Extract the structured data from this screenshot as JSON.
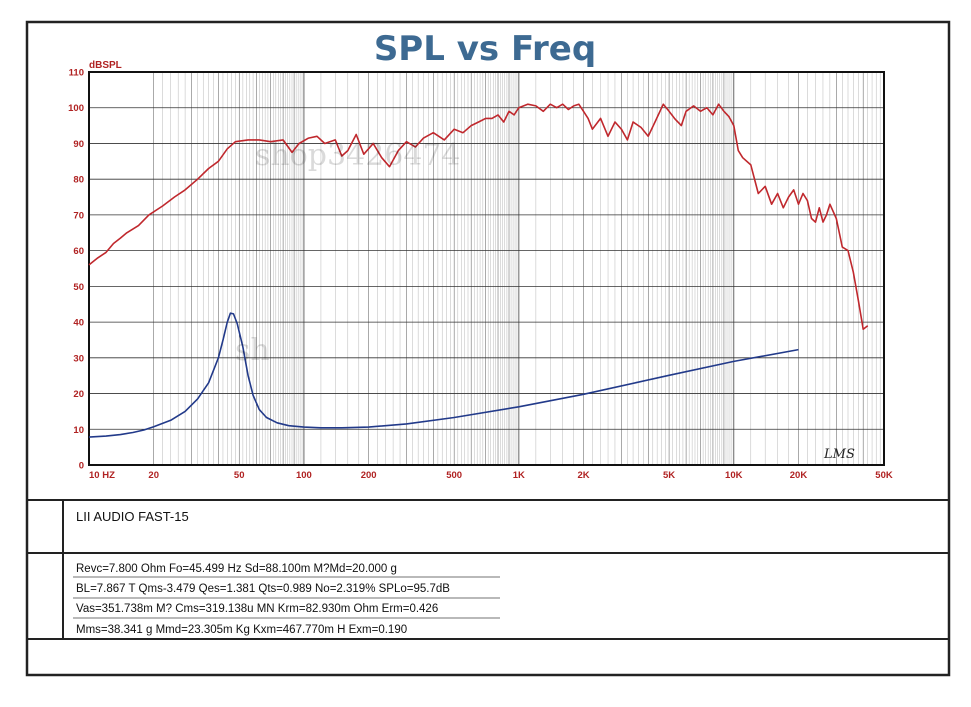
{
  "chart_data": {
    "type": "line",
    "title": "SPL vs Freq",
    "ylabel": "dBSPL",
    "xscale": "log",
    "xlim": [
      10,
      50000
    ],
    "ylim": [
      0,
      110
    ],
    "y_ticks": [
      "0",
      "10",
      "20",
      "30",
      "40",
      "50",
      "60",
      "70",
      "80",
      "90",
      "100",
      "110"
    ],
    "x_ticks": [
      {
        "value": 10,
        "label": "10  HZ"
      },
      {
        "value": 20,
        "label": "20"
      },
      {
        "value": 50,
        "label": "50"
      },
      {
        "value": 100,
        "label": "100"
      },
      {
        "value": 200,
        "label": "200"
      },
      {
        "value": 500,
        "label": "500"
      },
      {
        "value": 1000,
        "label": "1K"
      },
      {
        "value": 2000,
        "label": "2K"
      },
      {
        "value": 5000,
        "label": "5K"
      },
      {
        "value": 10000,
        "label": "10K"
      },
      {
        "value": 20000,
        "label": "20K"
      },
      {
        "value": 50000,
        "label": "50K"
      }
    ],
    "grid": true,
    "legend": "none",
    "annotation": "LMS",
    "series": [
      {
        "color": "#c0282d",
        "points": [
          [
            10,
            56
          ],
          [
            11,
            58
          ],
          [
            12,
            59.5
          ],
          [
            13,
            62
          ],
          [
            14,
            63.5
          ],
          [
            15,
            65
          ],
          [
            17,
            67
          ],
          [
            19,
            70
          ],
          [
            22,
            72.5
          ],
          [
            25,
            75
          ],
          [
            28,
            77
          ],
          [
            32,
            80
          ],
          [
            36,
            83
          ],
          [
            40,
            85
          ],
          [
            44,
            88.5
          ],
          [
            48,
            90.5
          ],
          [
            55,
            91
          ],
          [
            62,
            91
          ],
          [
            70,
            90.5
          ],
          [
            80,
            91
          ],
          [
            88,
            87.5
          ],
          [
            95,
            90
          ],
          [
            105,
            91.5
          ],
          [
            115,
            92
          ],
          [
            125,
            90
          ],
          [
            140,
            91
          ],
          [
            150,
            86.5
          ],
          [
            160,
            88
          ],
          [
            175,
            92.5
          ],
          [
            190,
            87
          ],
          [
            210,
            90
          ],
          [
            230,
            86
          ],
          [
            250,
            83.5
          ],
          [
            275,
            88
          ],
          [
            300,
            90.5
          ],
          [
            330,
            89
          ],
          [
            360,
            91.5
          ],
          [
            400,
            93
          ],
          [
            450,
            91
          ],
          [
            500,
            94
          ],
          [
            550,
            93
          ],
          [
            600,
            95
          ],
          [
            650,
            96
          ],
          [
            700,
            97
          ],
          [
            750,
            97
          ],
          [
            800,
            98
          ],
          [
            850,
            96
          ],
          [
            900,
            99
          ],
          [
            950,
            98
          ],
          [
            1000,
            100
          ],
          [
            1100,
            101
          ],
          [
            1200,
            100.5
          ],
          [
            1300,
            99
          ],
          [
            1400,
            101
          ],
          [
            1500,
            100
          ],
          [
            1600,
            101
          ],
          [
            1700,
            99.5
          ],
          [
            1800,
            100.5
          ],
          [
            1900,
            101
          ],
          [
            2000,
            99
          ],
          [
            2100,
            97
          ],
          [
            2200,
            94
          ],
          [
            2400,
            97
          ],
          [
            2600,
            92
          ],
          [
            2800,
            96
          ],
          [
            3000,
            94
          ],
          [
            3200,
            91
          ],
          [
            3400,
            96
          ],
          [
            3700,
            94.5
          ],
          [
            4000,
            92
          ],
          [
            4300,
            96
          ],
          [
            4700,
            101
          ],
          [
            5000,
            99
          ],
          [
            5300,
            97
          ],
          [
            5700,
            95
          ],
          [
            6000,
            99
          ],
          [
            6500,
            100.5
          ],
          [
            7000,
            99
          ],
          [
            7500,
            100
          ],
          [
            8000,
            98
          ],
          [
            8500,
            101
          ],
          [
            9000,
            99
          ],
          [
            9500,
            97.5
          ],
          [
            10000,
            95
          ],
          [
            10500,
            88
          ],
          [
            11000,
            86
          ],
          [
            12000,
            84
          ],
          [
            13000,
            76
          ],
          [
            14000,
            78
          ],
          [
            15000,
            73
          ],
          [
            16000,
            76
          ],
          [
            17000,
            72
          ],
          [
            18000,
            75
          ],
          [
            19000,
            77
          ],
          [
            20000,
            73
          ],
          [
            21000,
            76
          ],
          [
            22000,
            74
          ],
          [
            23000,
            69
          ],
          [
            24000,
            68
          ],
          [
            25000,
            72
          ],
          [
            26000,
            68
          ],
          [
            27000,
            70
          ],
          [
            28000,
            73
          ],
          [
            30000,
            69
          ],
          [
            32000,
            61
          ],
          [
            34000,
            60
          ],
          [
            36000,
            54
          ],
          [
            38000,
            46
          ],
          [
            40000,
            38
          ],
          [
            42000,
            39
          ]
        ]
      },
      {
        "color": "#223a8a",
        "points": [
          [
            10,
            7.8
          ],
          [
            12,
            8.1
          ],
          [
            14,
            8.5
          ],
          [
            16,
            9.1
          ],
          [
            18,
            9.8
          ],
          [
            20,
            10.7
          ],
          [
            24,
            12.5
          ],
          [
            28,
            15
          ],
          [
            32,
            18.5
          ],
          [
            36,
            23
          ],
          [
            40,
            30
          ],
          [
            42,
            35
          ],
          [
            44,
            40
          ],
          [
            45.5,
            42.5
          ],
          [
            47,
            42.3
          ],
          [
            49,
            39.5
          ],
          [
            52,
            33
          ],
          [
            55,
            25
          ],
          [
            58,
            19.5
          ],
          [
            62,
            15.5
          ],
          [
            67,
            13.3
          ],
          [
            75,
            11.8
          ],
          [
            85,
            11
          ],
          [
            100,
            10.6
          ],
          [
            120,
            10.4
          ],
          [
            150,
            10.4
          ],
          [
            200,
            10.6
          ],
          [
            300,
            11.5
          ],
          [
            500,
            13.3
          ],
          [
            1000,
            16.3
          ],
          [
            2000,
            19.8
          ],
          [
            5000,
            25.1
          ],
          [
            10000,
            29
          ],
          [
            20000,
            32.3
          ]
        ]
      }
    ]
  },
  "speaker_name": "LII AUDIO FAST-15",
  "params": [
    "Revc=7.800 Ohm  Fo=45.499 Hz  Sd=88.100m M?Md=20.000 g",
    "BL=7.867 T Qms-3.479  Qes=1.381  Qts=0.989  No=2.319%  SPLo=95.7dB",
    "Vas=351.738m M? Cms=319.138u MN Krm=82.930m Ohm Erm=0.426",
    "Mms=38.341 g  Mmd=23.305m Kg  Kxm=467.770m H  Exm=0.190"
  ],
  "watermark": "shop3426474"
}
